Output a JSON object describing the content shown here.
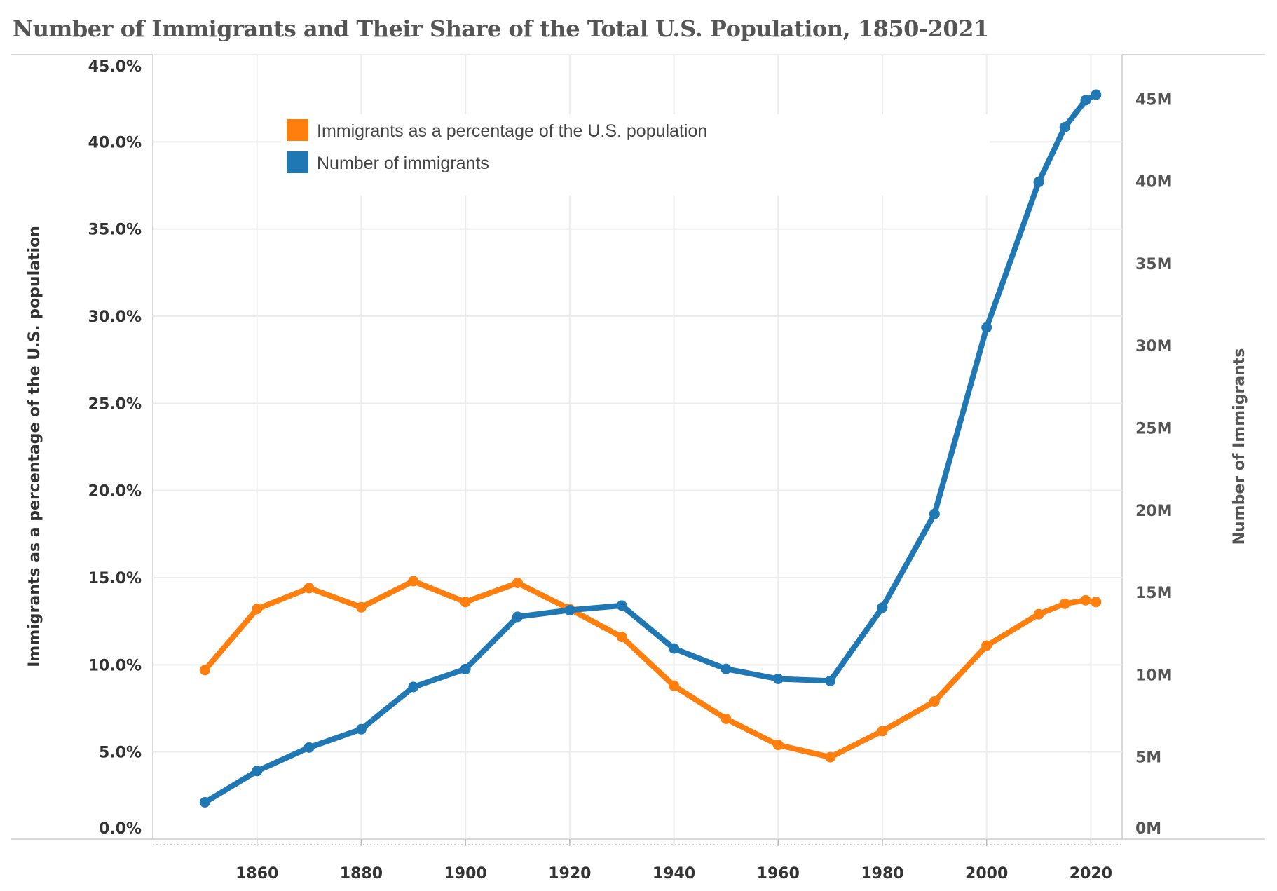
{
  "chart_data": {
    "type": "line",
    "title": "Number of Immigrants and Their Share of the Total U.S. Population, 1850-2021",
    "x": [
      1850,
      1860,
      1870,
      1880,
      1890,
      1900,
      1910,
      1920,
      1930,
      1940,
      1950,
      1960,
      1970,
      1980,
      1990,
      2000,
      2010,
      2015,
      2019,
      2021
    ],
    "xlim": [
      1840,
      2026
    ],
    "xticks": [
      1860,
      1880,
      1900,
      1920,
      1940,
      1960,
      1980,
      2000,
      2020
    ],
    "ylabel_left": "Immigrants as a percentage of the U.S. population",
    "ylabel_right": "Number of Immigrants",
    "ylim_left": [
      0,
      45
    ],
    "yticks_left": [
      "0.0%",
      "5.0%",
      "10.0%",
      "15.0%",
      "20.0%",
      "25.0%",
      "30.0%",
      "35.0%",
      "40.0%",
      "45.0%"
    ],
    "ylim_right": [
      0,
      47.7
    ],
    "yticks_right": [
      "0M",
      "5M",
      "10M",
      "15M",
      "20M",
      "25M",
      "30M",
      "35M",
      "40M",
      "45M"
    ],
    "grid": true,
    "legend_position": "top-left",
    "series": [
      {
        "name": "Immigrants as a percentage of the U.S. population",
        "axis": "left",
        "unit": "%",
        "color": "#ff7f0e",
        "values": [
          9.7,
          13.2,
          14.4,
          13.3,
          14.8,
          13.6,
          14.7,
          13.2,
          11.6,
          8.8,
          6.9,
          5.4,
          4.7,
          6.2,
          7.9,
          11.1,
          12.9,
          13.5,
          13.7,
          13.6
        ]
      },
      {
        "name": "Number of immigrants",
        "axis": "right",
        "unit": "millions",
        "color": "#1f77b4",
        "values": [
          2.24,
          4.14,
          5.57,
          6.68,
          9.25,
          10.34,
          13.52,
          13.92,
          14.2,
          11.59,
          10.35,
          9.74,
          9.62,
          14.08,
          19.77,
          31.11,
          39.96,
          43.29,
          44.93,
          45.27
        ]
      }
    ]
  }
}
